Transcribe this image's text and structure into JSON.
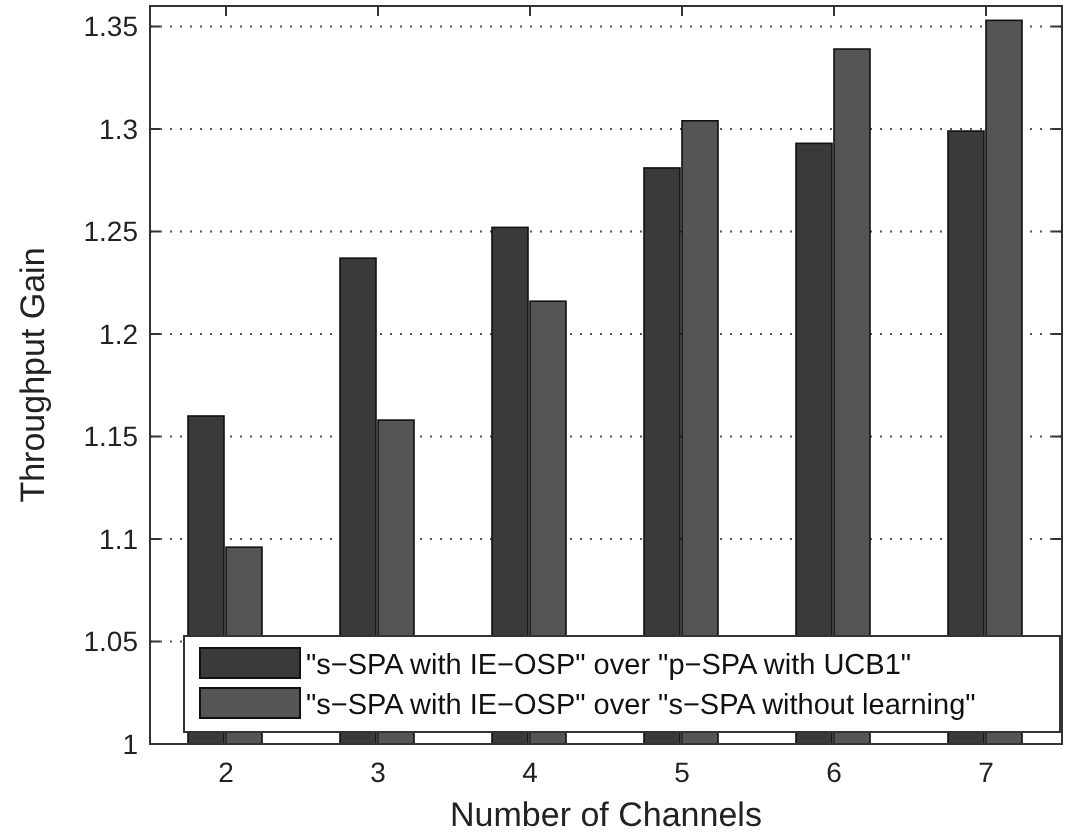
{
  "chart_data": {
    "type": "bar",
    "xlabel": "Number of Channels",
    "ylabel": "Throughput Gain",
    "categories": [
      "2",
      "3",
      "4",
      "5",
      "6",
      "7"
    ],
    "series": [
      {
        "name": "\"s−SPA with IE−OSP\" over \"p−SPA with UCB1\"",
        "color": "#3a3a3a",
        "values": [
          1.16,
          1.237,
          1.252,
          1.281,
          1.293,
          1.299
        ]
      },
      {
        "name": "\"s−SPA with IE−OSP\" over \"s−SPA without learning\"",
        "color": "#555555",
        "values": [
          1.096,
          1.158,
          1.216,
          1.304,
          1.339,
          1.353
        ]
      }
    ],
    "ylim": [
      1,
      1.36
    ],
    "yticks": [
      1,
      1.05,
      1.1,
      1.15,
      1.2,
      1.25,
      1.3,
      1.35
    ],
    "grid": "y",
    "legend": "bottom right"
  }
}
